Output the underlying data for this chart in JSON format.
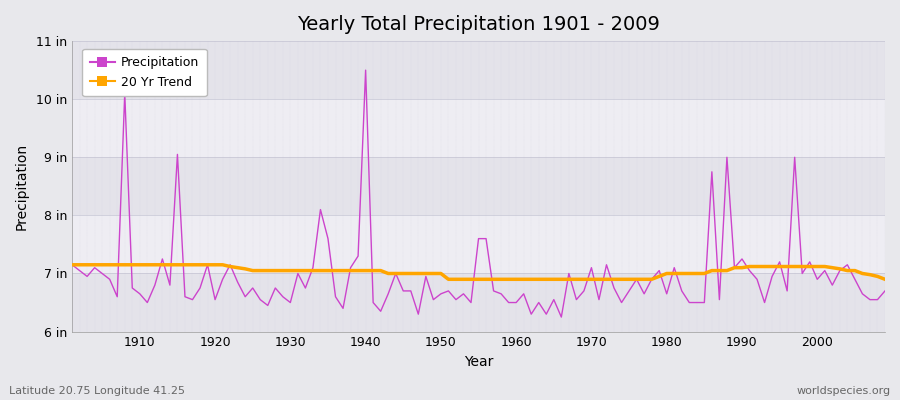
{
  "title": "Yearly Total Precipitation 1901 - 2009",
  "xlabel": "Year",
  "ylabel": "Precipitation",
  "subtitle_lat": "Latitude 20.75 Longitude 41.25",
  "watermark": "worldspecies.org",
  "ylim": [
    6,
    11
  ],
  "yticks": [
    6,
    7,
    8,
    9,
    10,
    11
  ],
  "ytick_labels": [
    "6 in",
    "7 in",
    "8 in",
    "9 in",
    "10 in",
    "11 in"
  ],
  "xlim": [
    1901,
    2009
  ],
  "precip_color": "#CC44CC",
  "trend_color": "#FFA500",
  "bg_color": "#E8E8EC",
  "plot_bg_color": "#F0EFF5",
  "band_color_light": "#EEEDF3",
  "band_color_dark": "#E4E3EA",
  "grid_color": "#FFFFFF",
  "years": [
    1901,
    1902,
    1903,
    1904,
    1905,
    1906,
    1907,
    1908,
    1909,
    1910,
    1911,
    1912,
    1913,
    1914,
    1915,
    1916,
    1917,
    1918,
    1919,
    1920,
    1921,
    1922,
    1923,
    1924,
    1925,
    1926,
    1927,
    1928,
    1929,
    1930,
    1931,
    1932,
    1933,
    1934,
    1935,
    1936,
    1937,
    1938,
    1939,
    1940,
    1941,
    1942,
    1943,
    1944,
    1945,
    1946,
    1947,
    1948,
    1949,
    1950,
    1951,
    1952,
    1953,
    1954,
    1955,
    1956,
    1957,
    1958,
    1959,
    1960,
    1961,
    1962,
    1963,
    1964,
    1965,
    1966,
    1967,
    1968,
    1969,
    1970,
    1971,
    1972,
    1973,
    1974,
    1975,
    1976,
    1977,
    1978,
    1979,
    1980,
    1981,
    1982,
    1983,
    1984,
    1985,
    1986,
    1987,
    1988,
    1989,
    1990,
    1991,
    1992,
    1993,
    1994,
    1995,
    1996,
    1997,
    1998,
    1999,
    2000,
    2001,
    2002,
    2003,
    2004,
    2005,
    2006,
    2007,
    2008,
    2009
  ],
  "precip": [
    7.15,
    7.05,
    6.95,
    7.1,
    7.0,
    6.9,
    6.6,
    10.1,
    6.75,
    6.65,
    6.5,
    6.8,
    7.25,
    6.8,
    9.05,
    6.6,
    6.55,
    6.75,
    7.15,
    6.55,
    6.9,
    7.15,
    6.85,
    6.6,
    6.75,
    6.55,
    6.45,
    6.75,
    6.6,
    6.5,
    7.0,
    6.75,
    7.1,
    8.1,
    7.6,
    6.6,
    6.4,
    7.1,
    7.3,
    10.5,
    6.5,
    6.35,
    6.65,
    7.0,
    6.7,
    6.7,
    6.3,
    6.95,
    6.55,
    6.65,
    6.7,
    6.55,
    6.65,
    6.5,
    7.6,
    7.6,
    6.7,
    6.65,
    6.5,
    6.5,
    6.65,
    6.3,
    6.5,
    6.3,
    6.55,
    6.25,
    7.0,
    6.55,
    6.7,
    7.1,
    6.55,
    7.15,
    6.75,
    6.5,
    6.7,
    6.9,
    6.65,
    6.9,
    7.05,
    6.65,
    7.1,
    6.7,
    6.5,
    6.5,
    6.5,
    8.75,
    6.55,
    9.0,
    7.1,
    7.25,
    7.05,
    6.9,
    6.5,
    6.95,
    7.2,
    6.7,
    9.0,
    7.0,
    7.2,
    6.9,
    7.05,
    6.8,
    7.05,
    7.15,
    6.9,
    6.65,
    6.55,
    6.55,
    6.7
  ],
  "trend": [
    7.15,
    7.15,
    7.15,
    7.15,
    7.15,
    7.15,
    7.15,
    7.15,
    7.15,
    7.15,
    7.15,
    7.15,
    7.15,
    7.15,
    7.15,
    7.15,
    7.15,
    7.15,
    7.15,
    7.15,
    7.15,
    7.12,
    7.1,
    7.08,
    7.05,
    7.05,
    7.05,
    7.05,
    7.05,
    7.05,
    7.05,
    7.05,
    7.05,
    7.05,
    7.05,
    7.05,
    7.05,
    7.05,
    7.05,
    7.05,
    7.05,
    7.05,
    7.0,
    7.0,
    7.0,
    7.0,
    7.0,
    7.0,
    7.0,
    7.0,
    6.9,
    6.9,
    6.9,
    6.9,
    6.9,
    6.9,
    6.9,
    6.9,
    6.9,
    6.9,
    6.9,
    6.9,
    6.9,
    6.9,
    6.9,
    6.9,
    6.9,
    6.9,
    6.9,
    6.9,
    6.9,
    6.9,
    6.9,
    6.9,
    6.9,
    6.9,
    6.9,
    6.9,
    6.95,
    7.0,
    7.0,
    7.0,
    7.0,
    7.0,
    7.0,
    7.05,
    7.05,
    7.05,
    7.1,
    7.1,
    7.12,
    7.12,
    7.12,
    7.12,
    7.12,
    7.12,
    7.12,
    7.12,
    7.12,
    7.12,
    7.12,
    7.1,
    7.08,
    7.05,
    7.05,
    7.0,
    6.98,
    6.95,
    6.9
  ]
}
